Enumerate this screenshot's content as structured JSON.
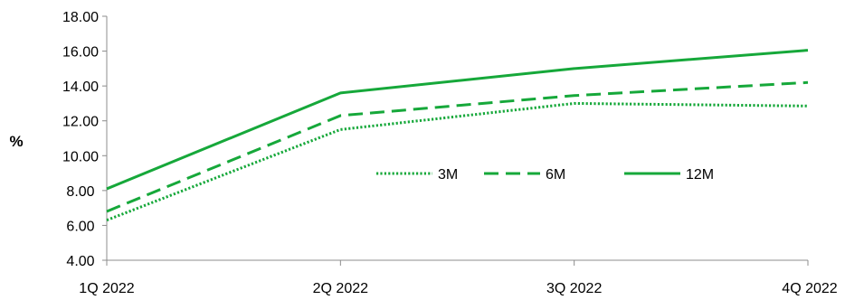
{
  "chart_data": {
    "type": "line",
    "categories": [
      "1Q 2022",
      "2Q 2022",
      "3Q 2022",
      "4Q 2022"
    ],
    "series": [
      {
        "name": "3M",
        "values": [
          6.3,
          11.5,
          13.0,
          12.85
        ],
        "style": "dotted",
        "color": "#16A83A"
      },
      {
        "name": "6M",
        "values": [
          6.8,
          12.3,
          13.45,
          14.2
        ],
        "style": "dashed",
        "color": "#16A83A"
      },
      {
        "name": "12M",
        "values": [
          8.1,
          13.6,
          15.0,
          16.05
        ],
        "style": "solid",
        "color": "#16A83A"
      }
    ],
    "ylabel": "%",
    "ylim": [
      4.0,
      18.0
    ],
    "yticks": [
      "4.00",
      "6.00",
      "8.00",
      "10.00",
      "12.00",
      "14.00",
      "16.00",
      "18.00"
    ],
    "grid": false,
    "legend_position": "center-right"
  }
}
